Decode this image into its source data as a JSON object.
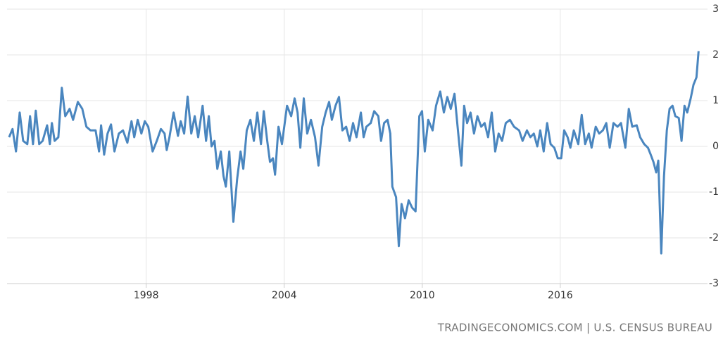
{
  "chart_data": {
    "type": "line",
    "source": "TRADINGECONOMICS.COM | U.S. CENSUS BUREAU",
    "color": "#4a86bf",
    "grid": true,
    "xlim": [
      1991.95,
      2022.4
    ],
    "ylim": [
      -3,
      3
    ],
    "xticks": [
      1998,
      2004,
      2010,
      2016
    ],
    "yticks": [
      -3,
      -2,
      -1,
      0,
      1,
      2,
      3
    ],
    "x": [
      1992.04,
      1992.19,
      1992.34,
      1992.5,
      1992.65,
      1992.83,
      1992.95,
      1993.08,
      1993.2,
      1993.35,
      1993.5,
      1993.69,
      1993.81,
      1993.9,
      1994.02,
      1994.18,
      1994.33,
      1994.48,
      1994.67,
      1994.82,
      1995.03,
      1995.22,
      1995.4,
      1995.58,
      1995.8,
      1995.95,
      1996.04,
      1996.17,
      1996.32,
      1996.47,
      1996.62,
      1996.81,
      1996.99,
      1997.18,
      1997.36,
      1997.48,
      1997.63,
      1997.79,
      1997.94,
      1998.09,
      1998.28,
      1998.46,
      1998.64,
      1998.8,
      1998.89,
      1999.01,
      1999.19,
      1999.38,
      1999.5,
      1999.65,
      1999.8,
      1999.96,
      2000.11,
      2000.26,
      2000.45,
      2000.6,
      2000.72,
      2000.84,
      2000.97,
      2001.09,
      2001.24,
      2001.36,
      2001.46,
      2001.61,
      2001.79,
      2001.95,
      2002.1,
      2002.22,
      2002.37,
      2002.53,
      2002.68,
      2002.83,
      2002.99,
      2003.11,
      2003.26,
      2003.38,
      2003.51,
      2003.6,
      2003.75,
      2003.9,
      2004.12,
      2004.3,
      2004.45,
      2004.58,
      2004.7,
      2004.85,
      2005.0,
      2005.16,
      2005.34,
      2005.49,
      2005.65,
      2005.8,
      2005.95,
      2006.07,
      2006.23,
      2006.38,
      2006.53,
      2006.69,
      2006.84,
      2006.99,
      2007.14,
      2007.33,
      2007.45,
      2007.57,
      2007.76,
      2007.91,
      2008.09,
      2008.21,
      2008.34,
      2008.49,
      2008.61,
      2008.7,
      2008.86,
      2008.98,
      2009.1,
      2009.25,
      2009.41,
      2009.56,
      2009.71,
      2009.87,
      2009.99,
      2010.11,
      2010.26,
      2010.45,
      2010.6,
      2010.78,
      2010.94,
      2011.09,
      2011.24,
      2011.4,
      2011.55,
      2011.7,
      2011.82,
      2011.95,
      2012.1,
      2012.25,
      2012.4,
      2012.56,
      2012.71,
      2012.86,
      2013.02,
      2013.17,
      2013.32,
      2013.47,
      2013.63,
      2013.81,
      2013.99,
      2014.21,
      2014.36,
      2014.55,
      2014.7,
      2014.85,
      2015.0,
      2015.13,
      2015.28,
      2015.43,
      2015.58,
      2015.74,
      2015.89,
      2016.04,
      2016.17,
      2016.32,
      2016.44,
      2016.59,
      2016.78,
      2016.93,
      2017.08,
      2017.24,
      2017.36,
      2017.54,
      2017.69,
      2017.85,
      2018.0,
      2018.15,
      2018.31,
      2018.49,
      2018.64,
      2018.83,
      2018.98,
      2019.13,
      2019.32,
      2019.47,
      2019.65,
      2019.81,
      2019.93,
      2020.05,
      2020.17,
      2020.26,
      2020.39,
      2020.51,
      2020.63,
      2020.75,
      2020.88,
      2021.0,
      2021.15,
      2021.27,
      2021.4,
      2021.52,
      2021.67,
      2021.79,
      2021.92,
      2022.01
    ],
    "values": [
      0.2,
      0.38,
      -0.11,
      0.74,
      0.12,
      0.05,
      0.66,
      0.05,
      0.78,
      0.05,
      0.12,
      0.46,
      0.05,
      0.51,
      0.12,
      0.2,
      1.28,
      0.66,
      0.82,
      0.58,
      0.97,
      0.82,
      0.43,
      0.35,
      0.35,
      -0.11,
      0.46,
      -0.18,
      0.28,
      0.48,
      -0.11,
      0.28,
      0.35,
      0.08,
      0.55,
      0.2,
      0.58,
      0.28,
      0.55,
      0.43,
      -0.11,
      0.12,
      0.38,
      0.28,
      -0.08,
      0.2,
      0.74,
      0.23,
      0.55,
      0.28,
      1.09,
      0.28,
      0.66,
      0.2,
      0.89,
      0.12,
      0.66,
      0,
      0.12,
      -0.49,
      -0.11,
      -0.65,
      -0.88,
      -0.11,
      -1.65,
      -0.72,
      -0.11,
      -0.49,
      0.35,
      0.58,
      0.12,
      0.74,
      0.05,
      0.77,
      0.12,
      -0.34,
      -0.26,
      -0.62,
      0.43,
      0.05,
      0.89,
      0.66,
      1.05,
      0.74,
      -0.03,
      1.05,
      0.28,
      0.58,
      0.2,
      -0.42,
      0.43,
      0.74,
      0.97,
      0.58,
      0.89,
      1.08,
      0.35,
      0.43,
      0.12,
      0.51,
      0.2,
      0.74,
      0.2,
      0.43,
      0.51,
      0.77,
      0.66,
      0.12,
      0.51,
      0.58,
      0.28,
      -0.88,
      -1.11,
      -2.18,
      -1.26,
      -1.57,
      -1.18,
      -1.34,
      -1.42,
      0.66,
      0.77,
      -0.11,
      0.58,
      0.35,
      0.89,
      1.2,
      0.74,
      1.08,
      0.82,
      1.15,
      0.35,
      -0.42,
      0.89,
      0.51,
      0.74,
      0.28,
      0.66,
      0.43,
      0.51,
      0.2,
      0.74,
      -0.11,
      0.28,
      0.12,
      0.51,
      0.58,
      0.43,
      0.35,
      0.12,
      0.35,
      0.2,
      0.28,
      0,
      0.35,
      -0.11,
      0.51,
      0.05,
      -0.03,
      -0.26,
      -0.26,
      0.35,
      0.2,
      -0.03,
      0.35,
      0.05,
      0.69,
      0.05,
      0.28,
      -0.03,
      0.43,
      0.28,
      0.35,
      0.51,
      -0.03,
      0.51,
      0.43,
      0.51,
      -0.03,
      0.82,
      0.43,
      0.46,
      0.2,
      0.05,
      -0.03,
      -0.18,
      -0.34,
      -0.57,
      -0.31,
      -2.34,
      -0.65,
      0.35,
      0.82,
      0.89,
      0.66,
      0.62,
      0.12,
      0.89,
      0.74,
      1.05,
      1.35,
      1.51,
      2.08
    ]
  }
}
